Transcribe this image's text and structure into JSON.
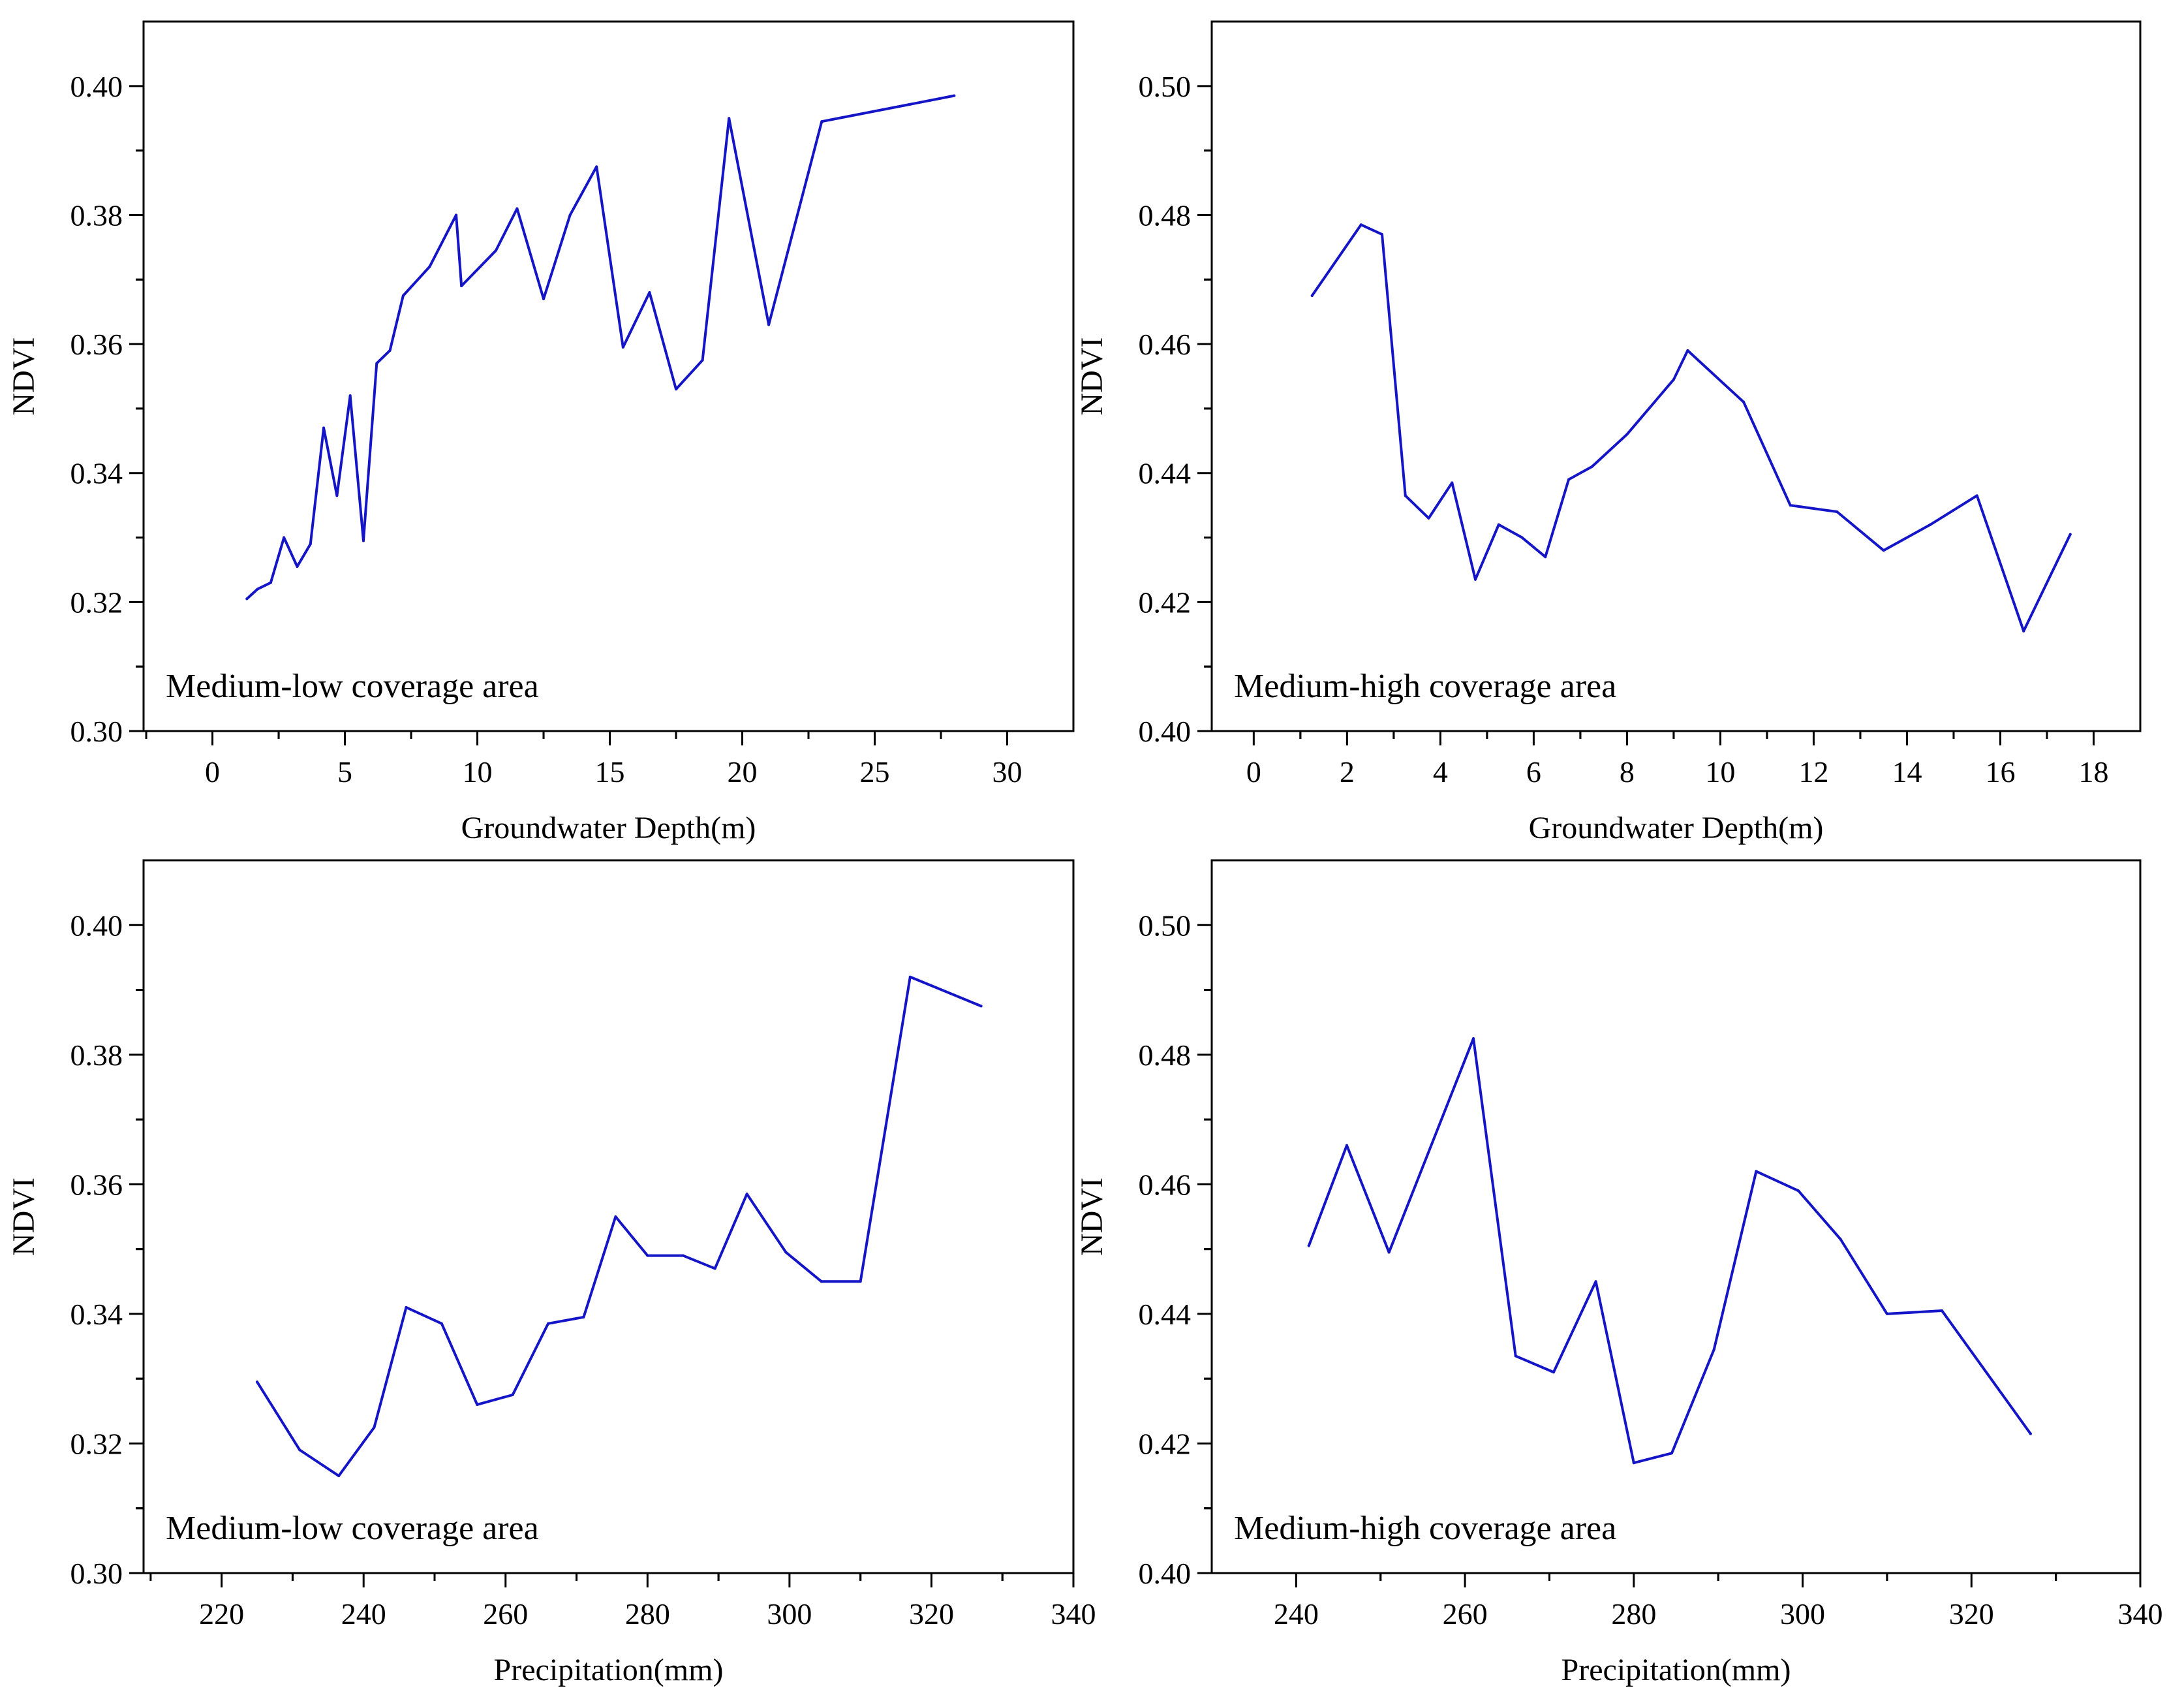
{
  "colors": {
    "series": "#1515c8",
    "axis": "#000000"
  },
  "chart_data": [
    {
      "type": "line",
      "annotation": "Medium-low coverage area",
      "xlabel": "Groundwater Depth(m)",
      "ylabel": "NDVI",
      "xlim": [
        -2.6,
        32.5
      ],
      "ylim": [
        0.3,
        0.41
      ],
      "xticks": [
        0,
        5,
        10,
        15,
        20,
        25,
        30
      ],
      "xtick_labels": [
        "0",
        "5",
        "10",
        "15",
        "20",
        "25",
        "30"
      ],
      "yticks": [
        0.3,
        0.32,
        0.34,
        0.36,
        0.38,
        0.4
      ],
      "ytick_labels": [
        "0.30",
        "0.32",
        "0.34",
        "0.36",
        "0.38",
        "0.40"
      ],
      "x": [
        1.3,
        1.7,
        2.2,
        2.7,
        3.2,
        3.7,
        4.2,
        4.7,
        5.2,
        5.7,
        6.2,
        6.7,
        7.2,
        8.2,
        9.2,
        9.4,
        10.7,
        11.5,
        12.5,
        13.5,
        14.5,
        15.5,
        16.5,
        17.5,
        18.5,
        19.5,
        21.0,
        23.0,
        28.0
      ],
      "series": [
        {
          "name": "NDVI",
          "values": [
            0.3205,
            0.322,
            0.323,
            0.33,
            0.3255,
            0.329,
            0.347,
            0.3365,
            0.352,
            0.3295,
            0.357,
            0.359,
            0.3675,
            0.372,
            0.38,
            0.369,
            0.3745,
            0.381,
            0.367,
            0.38,
            0.3875,
            0.3595,
            0.368,
            0.353,
            0.3575,
            0.395,
            0.363,
            0.3945,
            0.3985
          ]
        }
      ]
    },
    {
      "type": "line",
      "annotation": "Medium-high coverage area",
      "xlabel": "Groundwater Depth(m)",
      "ylabel": "NDVI",
      "xlim": [
        -0.9,
        19.0
      ],
      "ylim": [
        0.4,
        0.51
      ],
      "xticks": [
        0,
        2,
        4,
        6,
        8,
        10,
        12,
        14,
        16,
        18
      ],
      "xtick_labels": [
        "0",
        "2",
        "4",
        "6",
        "8",
        "10",
        "12",
        "14",
        "16",
        "18"
      ],
      "yticks": [
        0.4,
        0.42,
        0.44,
        0.46,
        0.48,
        0.5
      ],
      "ytick_labels": [
        "0.40",
        "0.42",
        "0.44",
        "0.46",
        "0.48",
        "0.50"
      ],
      "x": [
        1.25,
        2.3,
        2.75,
        3.25,
        3.75,
        4.25,
        4.75,
        5.25,
        5.75,
        6.25,
        6.75,
        7.25,
        8.0,
        9.0,
        9.3,
        10.5,
        11.5,
        12.5,
        13.5,
        14.5,
        15.5,
        16.5,
        17.5
      ],
      "series": [
        {
          "name": "NDVI",
          "values": [
            0.4675,
            0.4785,
            0.477,
            0.4365,
            0.433,
            0.4385,
            0.4235,
            0.432,
            0.43,
            0.427,
            0.439,
            0.441,
            0.446,
            0.4545,
            0.459,
            0.451,
            0.435,
            0.434,
            0.428,
            0.432,
            0.4365,
            0.4155,
            0.4305
          ]
        }
      ]
    },
    {
      "type": "line",
      "annotation": "Medium-low coverage area",
      "xlabel": "Precipitation(mm)",
      "ylabel": "NDVI",
      "xlim": [
        209,
        340
      ],
      "ylim": [
        0.3,
        0.41
      ],
      "xticks": [
        220,
        240,
        260,
        280,
        300,
        320,
        340
      ],
      "xtick_labels": [
        "220",
        "240",
        "260",
        "280",
        "300",
        "320",
        "340"
      ],
      "yticks": [
        0.3,
        0.32,
        0.34,
        0.36,
        0.38,
        0.4
      ],
      "ytick_labels": [
        "0.30",
        "0.32",
        "0.34",
        "0.36",
        "0.38",
        "0.40"
      ],
      "x": [
        225,
        231,
        236.5,
        241.5,
        246,
        251,
        256,
        261,
        266,
        271,
        275.5,
        280,
        285,
        289.5,
        294,
        299.5,
        304.5,
        310,
        317,
        327
      ],
      "series": [
        {
          "name": "NDVI",
          "values": [
            0.3295,
            0.319,
            0.315,
            0.3225,
            0.341,
            0.3385,
            0.326,
            0.3275,
            0.3385,
            0.3395,
            0.355,
            0.349,
            0.349,
            0.347,
            0.3585,
            0.3495,
            0.345,
            0.345,
            0.392,
            0.3875
          ]
        }
      ]
    },
    {
      "type": "line",
      "annotation": "Medium-high coverage area",
      "xlabel": "Precipitation(mm)",
      "ylabel": "NDVI",
      "xlim": [
        230,
        340
      ],
      "ylim": [
        0.4,
        0.51
      ],
      "xticks": [
        240,
        260,
        280,
        300,
        320,
        340
      ],
      "xtick_labels": [
        "240",
        "260",
        "280",
        "300",
        "320",
        "340"
      ],
      "yticks": [
        0.4,
        0.42,
        0.44,
        0.46,
        0.48,
        0.5
      ],
      "ytick_labels": [
        "0.40",
        "0.42",
        "0.44",
        "0.46",
        "0.48",
        "0.50"
      ],
      "x": [
        241.5,
        246,
        251,
        261,
        266,
        270.5,
        275.5,
        280,
        284.5,
        289.5,
        294.5,
        299.5,
        304.5,
        310,
        316.5,
        327
      ],
      "series": [
        {
          "name": "NDVI",
          "values": [
            0.4505,
            0.466,
            0.4495,
            0.4825,
            0.4335,
            0.431,
            0.445,
            0.417,
            0.4185,
            0.4345,
            0.462,
            0.459,
            0.4515,
            0.44,
            0.4405,
            0.4215
          ]
        }
      ]
    }
  ]
}
